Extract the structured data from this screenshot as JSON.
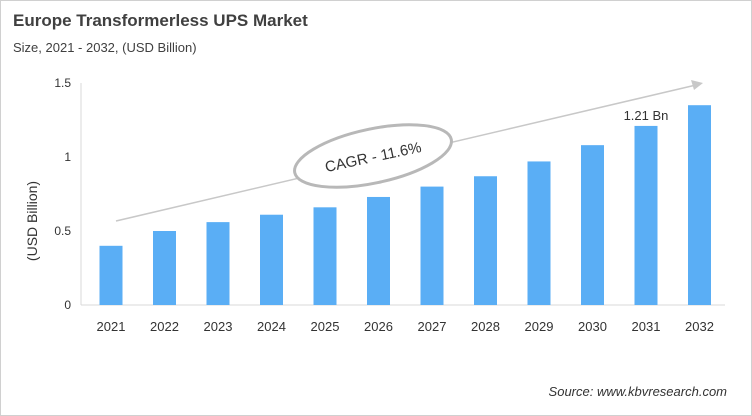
{
  "chart_data": {
    "type": "bar",
    "title": "Europe Transformerless UPS Market",
    "subtitle": "Size, 2021 - 2032, (USD Billion)",
    "xlabel": "",
    "ylabel": "(USD Billion)",
    "categories": [
      "2021",
      "2022",
      "2023",
      "2024",
      "2025",
      "2026",
      "2027",
      "2028",
      "2029",
      "2030",
      "2031",
      "2032"
    ],
    "values": [
      0.4,
      0.5,
      0.56,
      0.61,
      0.66,
      0.73,
      0.8,
      0.87,
      0.97,
      1.08,
      1.21,
      1.35
    ],
    "ylim": [
      0,
      1.5
    ],
    "yticks": [
      "0",
      "0.5",
      "1",
      "1.5"
    ],
    "grid": false,
    "bar_color": "#5aaef5",
    "annotations": {
      "cagr": "CAGR - 11.6%",
      "label_2031": "1.21 Bn"
    },
    "source": "Source: www.kbvresearch.com"
  }
}
